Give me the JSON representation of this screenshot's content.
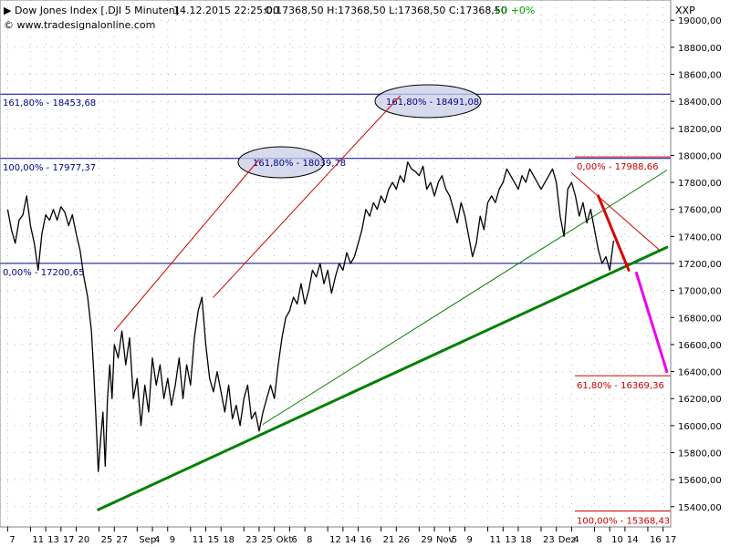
{
  "header": {
    "title": "Dow Jones Index [.DJI  5 Minuten]",
    "datetime": "14.12.2015 22:25:00",
    "ohlc": "O:17368,50 H:17368,50 L:17368,50 C:17368,50",
    "change": "+0 +0%",
    "change_color": "#00a000",
    "copyright": "© www.tradesignalonline.com"
  },
  "chart_data": {
    "type": "line",
    "symbol": "XXP",
    "ylim": [
      15250,
      19150
    ],
    "yticks": [
      {
        "v": 19000,
        "label": "19000,00"
      },
      {
        "v": 18800,
        "label": "18800,00"
      },
      {
        "v": 18600,
        "label": "18600,00"
      },
      {
        "v": 18400,
        "label": "18400,00"
      },
      {
        "v": 18200,
        "label": "18200,00"
      },
      {
        "v": 18000,
        "label": "18000,00"
      },
      {
        "v": 17800,
        "label": "17800,00"
      },
      {
        "v": 17600,
        "label": "17600,00"
      },
      {
        "v": 17400,
        "label": "17400,00"
      },
      {
        "v": 17200,
        "label": "17200,00"
      },
      {
        "v": 17000,
        "label": "17000,00"
      },
      {
        "v": 16800,
        "label": "16800,00"
      },
      {
        "v": 16600,
        "label": "16600,00"
      },
      {
        "v": 16400,
        "label": "16400,00"
      },
      {
        "v": 16200,
        "label": "16200,00"
      },
      {
        "v": 16000,
        "label": "16000,00"
      },
      {
        "v": 15800,
        "label": "15800,00"
      },
      {
        "v": 15600,
        "label": "15600,00"
      },
      {
        "v": 15400,
        "label": "15400,00"
      }
    ],
    "xlim": [
      -1,
      87
    ],
    "xticks": [
      {
        "d": 0,
        "label": "7"
      },
      {
        "d": 3,
        "label": "11"
      },
      {
        "d": 5,
        "label": "13"
      },
      {
        "d": 7,
        "label": "17"
      },
      {
        "d": 9,
        "label": "20"
      },
      {
        "d": 12,
        "label": "25"
      },
      {
        "d": 14,
        "label": "27"
      },
      {
        "d": 17,
        "label": "Sep"
      },
      {
        "d": 19,
        "label": "4"
      },
      {
        "d": 21,
        "label": "9"
      },
      {
        "d": 24,
        "label": "11"
      },
      {
        "d": 26,
        "label": "15"
      },
      {
        "d": 28,
        "label": "18"
      },
      {
        "d": 31,
        "label": "23"
      },
      {
        "d": 33,
        "label": "25"
      },
      {
        "d": 35,
        "label": "Okt"
      },
      {
        "d": 37,
        "label": "6"
      },
      {
        "d": 39,
        "label": "8"
      },
      {
        "d": 42,
        "label": "12"
      },
      {
        "d": 44,
        "label": "14"
      },
      {
        "d": 46,
        "label": "16"
      },
      {
        "d": 49,
        "label": "21"
      },
      {
        "d": 51,
        "label": "26"
      },
      {
        "d": 54,
        "label": "29"
      },
      {
        "d": 56,
        "label": "Nov"
      },
      {
        "d": 58,
        "label": "5"
      },
      {
        "d": 60,
        "label": "9"
      },
      {
        "d": 63,
        "label": "11"
      },
      {
        "d": 65,
        "label": "13"
      },
      {
        "d": 67,
        "label": "18"
      },
      {
        "d": 70,
        "label": "23"
      },
      {
        "d": 72,
        "label": "Dez"
      },
      {
        "d": 74,
        "label": "4"
      },
      {
        "d": 77,
        "label": "8"
      },
      {
        "d": 79,
        "label": "10"
      },
      {
        "d": 81,
        "label": "14"
      },
      {
        "d": 84,
        "label": "16"
      },
      {
        "d": 86,
        "label": "17"
      }
    ],
    "series": [
      {
        "color": "#000000",
        "points": [
          [
            0,
            17600
          ],
          [
            0.5,
            17450
          ],
          [
            1,
            17350
          ],
          [
            1.5,
            17520
          ],
          [
            2,
            17560
          ],
          [
            2.5,
            17700
          ],
          [
            3,
            17480
          ],
          [
            3.5,
            17350
          ],
          [
            4,
            17150
          ],
          [
            4.5,
            17420
          ],
          [
            5,
            17560
          ],
          [
            5.5,
            17520
          ],
          [
            6,
            17600
          ],
          [
            6.5,
            17520
          ],
          [
            7,
            17620
          ],
          [
            7.5,
            17580
          ],
          [
            8,
            17480
          ],
          [
            8.5,
            17560
          ],
          [
            9,
            17420
          ],
          [
            9.5,
            17300
          ],
          [
            10,
            17100
          ],
          [
            10.5,
            16950
          ],
          [
            11,
            16700
          ],
          [
            11.3,
            16400
          ],
          [
            11.6,
            16050
          ],
          [
            11.9,
            15660
          ],
          [
            12.2,
            15900
          ],
          [
            12.5,
            16100
          ],
          [
            12.8,
            15700
          ],
          [
            13.1,
            16200
          ],
          [
            13.4,
            16450
          ],
          [
            13.7,
            16200
          ],
          [
            14,
            16600
          ],
          [
            14.5,
            16500
          ],
          [
            15,
            16700
          ],
          [
            15.5,
            16450
          ],
          [
            16,
            16650
          ],
          [
            16.5,
            16200
          ],
          [
            17,
            16350
          ],
          [
            17.5,
            16000
          ],
          [
            18,
            16300
          ],
          [
            18.5,
            16100
          ],
          [
            19,
            16500
          ],
          [
            19.5,
            16300
          ],
          [
            20,
            16450
          ],
          [
            20.5,
            16200
          ],
          [
            21,
            16350
          ],
          [
            21.5,
            16150
          ],
          [
            22,
            16300
          ],
          [
            22.5,
            16500
          ],
          [
            23,
            16200
          ],
          [
            23.5,
            16450
          ],
          [
            24,
            16300
          ],
          [
            24.5,
            16650
          ],
          [
            25,
            16850
          ],
          [
            25.5,
            16950
          ],
          [
            26,
            16600
          ],
          [
            26.5,
            16350
          ],
          [
            27,
            16250
          ],
          [
            27.5,
            16400
          ],
          [
            28,
            16250
          ],
          [
            28.5,
            16100
          ],
          [
            29,
            16300
          ],
          [
            29.5,
            16050
          ],
          [
            30,
            16150
          ],
          [
            30.5,
            16000
          ],
          [
            31,
            16200
          ],
          [
            31.5,
            16300
          ],
          [
            32,
            16050
          ],
          [
            32.5,
            16100
          ],
          [
            33,
            15960
          ],
          [
            33.5,
            16100
          ],
          [
            34,
            16200
          ],
          [
            34.5,
            16300
          ],
          [
            35,
            16200
          ],
          [
            35.5,
            16450
          ],
          [
            36,
            16650
          ],
          [
            36.5,
            16800
          ],
          [
            37,
            16850
          ],
          [
            37.5,
            16950
          ],
          [
            38,
            16900
          ],
          [
            38.5,
            17050
          ],
          [
            39,
            16900
          ],
          [
            39.5,
            17000
          ],
          [
            40,
            17150
          ],
          [
            40.5,
            17100
          ],
          [
            41,
            17200
          ],
          [
            41.5,
            17050
          ],
          [
            42,
            17150
          ],
          [
            42.5,
            16980
          ],
          [
            43,
            17100
          ],
          [
            43.5,
            17200
          ],
          [
            44,
            17150
          ],
          [
            44.5,
            17280
          ],
          [
            45,
            17200
          ],
          [
            45.5,
            17250
          ],
          [
            46,
            17350
          ],
          [
            46.5,
            17450
          ],
          [
            47,
            17600
          ],
          [
            47.5,
            17550
          ],
          [
            48,
            17650
          ],
          [
            48.5,
            17600
          ],
          [
            49,
            17700
          ],
          [
            49.5,
            17650
          ],
          [
            50,
            17750
          ],
          [
            50.5,
            17800
          ],
          [
            51,
            17750
          ],
          [
            51.5,
            17850
          ],
          [
            52,
            17800
          ],
          [
            52.5,
            17950
          ],
          [
            53,
            17900
          ],
          [
            53.5,
            17880
          ],
          [
            54,
            17850
          ],
          [
            54.5,
            17920
          ],
          [
            55,
            17750
          ],
          [
            55.5,
            17800
          ],
          [
            56,
            17700
          ],
          [
            56.5,
            17800
          ],
          [
            57,
            17850
          ],
          [
            57.5,
            17750
          ],
          [
            58,
            17700
          ],
          [
            58.5,
            17600
          ],
          [
            59,
            17500
          ],
          [
            59.5,
            17650
          ],
          [
            60,
            17550
          ],
          [
            60.5,
            17400
          ],
          [
            61,
            17250
          ],
          [
            61.5,
            17350
          ],
          [
            62,
            17550
          ],
          [
            62.5,
            17450
          ],
          [
            63,
            17650
          ],
          [
            63.5,
            17700
          ],
          [
            64,
            17650
          ],
          [
            64.5,
            17750
          ],
          [
            65,
            17800
          ],
          [
            65.5,
            17900
          ],
          [
            66,
            17850
          ],
          [
            66.5,
            17800
          ],
          [
            67,
            17750
          ],
          [
            67.5,
            17850
          ],
          [
            68,
            17800
          ],
          [
            68.5,
            17900
          ],
          [
            69,
            17850
          ],
          [
            69.5,
            17800
          ],
          [
            70,
            17750
          ],
          [
            70.5,
            17800
          ],
          [
            71,
            17850
          ],
          [
            71.5,
            17900
          ],
          [
            72,
            17800
          ],
          [
            72.5,
            17550
          ],
          [
            73,
            17400
          ],
          [
            73.5,
            17750
          ],
          [
            74,
            17800
          ],
          [
            74.5,
            17700
          ],
          [
            75,
            17550
          ],
          [
            75.5,
            17650
          ],
          [
            76,
            17500
          ],
          [
            76.5,
            17600
          ],
          [
            77,
            17450
          ],
          [
            77.5,
            17300
          ],
          [
            78,
            17200
          ],
          [
            78.5,
            17250
          ],
          [
            79,
            17150
          ],
          [
            79.5,
            17368
          ]
        ]
      }
    ],
    "horizontal_levels": [
      {
        "y": 18453.68,
        "label": "161,80% - 18453,68",
        "color": "#00008b"
      },
      {
        "y": 17977.37,
        "label": "100,00% - 17977,37",
        "color": "#00008b"
      },
      {
        "y": 17200.65,
        "label": "0,00% - 17200,65",
        "color": "#00008b"
      },
      {
        "y": 17988.66,
        "label": "0,00% - 17988,66",
        "color": "#cc0000"
      },
      {
        "y": 16369.36,
        "label": "61,80% - 16369,36",
        "color": "#cc0000"
      },
      {
        "y": 15368.43,
        "label": "100,00% - 15368,43",
        "color": "#cc0000"
      }
    ],
    "projection_labels": [
      {
        "label": "161,80% - 18039,78",
        "color": "#00008b"
      },
      {
        "label": "161,80% - 18491,08",
        "color": "#00008b"
      }
    ],
    "trendlines": [
      {
        "from": [
          11.9,
          15378
        ],
        "to": [
          86.5,
          17320
        ],
        "color": "#008000",
        "width": 3
      },
      {
        "from": [
          33.5,
          16010
        ],
        "to": [
          86.5,
          17890
        ],
        "color": "#008000",
        "width": 1
      },
      {
        "from": [
          14,
          16700
        ],
        "to": [
          33,
          17970
        ],
        "color": "#cc0000",
        "width": 1
      },
      {
        "from": [
          27,
          16950
        ],
        "to": [
          51.5,
          18440
        ],
        "color": "#cc0000",
        "width": 1
      },
      {
        "from": [
          74,
          17870
        ],
        "to": [
          85.5,
          17300
        ],
        "color": "#cc0000",
        "width": 1
      },
      {
        "from": [
          77.5,
          17700
        ],
        "to": [
          81.5,
          17150
        ],
        "color": "#dd0000",
        "width": 3
      },
      {
        "from": [
          82.5,
          17130
        ],
        "to": [
          86.5,
          16400
        ],
        "color": "#ee00ee",
        "width": 3
      }
    ]
  }
}
